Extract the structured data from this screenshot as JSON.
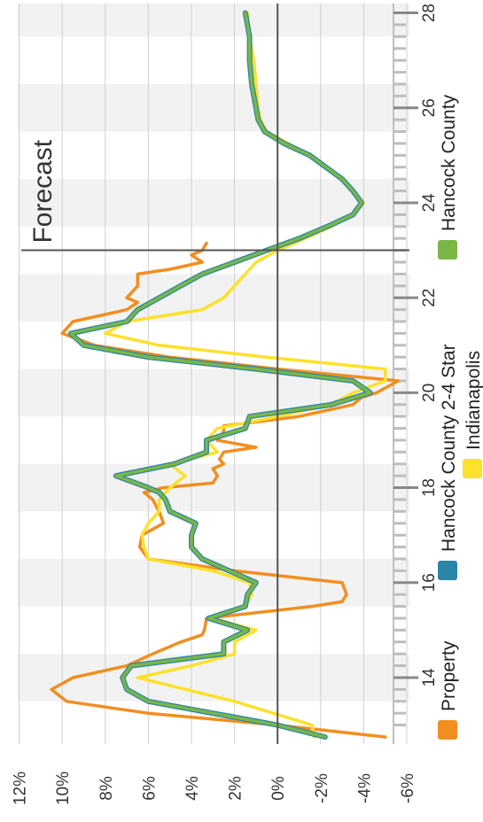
{
  "chart_data": {
    "type": "line",
    "orientation": "rotated-90-counterclockwise",
    "xlim": [
      12.6,
      28.2
    ],
    "ylim": [
      -6,
      12
    ],
    "x_ticks": [
      14,
      16,
      18,
      20,
      22,
      24,
      26,
      28
    ],
    "y_ticks": [
      12,
      10,
      8,
      6,
      4,
      2,
      0,
      -2,
      -4,
      -6
    ],
    "y_tick_labels": [
      "12%",
      "10%",
      "8%",
      "6%",
      "4%",
      "2%",
      "0%",
      "-2%",
      "-4%",
      "-6%"
    ],
    "grid": true,
    "shaded_bands": [
      [
        13.5,
        14.5
      ],
      [
        15.5,
        16.5
      ],
      [
        17.5,
        18.5
      ],
      [
        19.5,
        20.5
      ],
      [
        21.5,
        22.5
      ],
      [
        23.5,
        24.5
      ],
      [
        25.5,
        26.5
      ],
      [
        27.5,
        28.2
      ]
    ],
    "forecast_x": 23.0,
    "annotation": "Forecast",
    "legend_position": "bottom",
    "colors": {
      "Property": "#f28e1f",
      "Hancock County 2-4 Star": "#2a86a8",
      "Indianapolis": "#fde12b",
      "Hancock County": "#7ab648"
    },
    "series": [
      {
        "name": "Property",
        "color": "#f28e1f",
        "x": [
          12.75,
          13.0,
          13.25,
          13.5,
          13.75,
          14.0,
          14.25,
          14.5,
          14.75,
          14.9,
          15.0,
          15.25,
          15.5,
          15.6,
          15.75,
          16.0,
          16.25,
          16.5,
          16.75,
          17.0,
          17.25,
          17.5,
          17.75,
          17.9,
          18.0,
          18.1,
          18.25,
          18.4,
          18.5,
          18.6,
          18.75,
          18.85,
          19.0,
          19.1,
          19.2,
          19.3,
          19.5,
          19.75,
          19.9,
          20.0,
          20.25,
          20.5,
          20.75,
          21.0,
          21.25,
          21.5,
          21.75,
          21.9,
          22.0,
          22.25,
          22.5,
          22.6,
          22.75,
          22.9,
          23.0,
          23.15
        ],
        "y": [
          -5.0,
          0.0,
          6.0,
          9.8,
          10.5,
          9.5,
          7.0,
          5.8,
          4.5,
          3.5,
          3.4,
          3.3,
          -1.6,
          -3.0,
          -3.2,
          -3.0,
          2.0,
          6.0,
          6.4,
          6.3,
          5.3,
          5.5,
          5.8,
          6.2,
          5.3,
          3.0,
          2.8,
          3.0,
          2.5,
          2.7,
          2.5,
          1.0,
          2.8,
          2.6,
          2.5,
          2.5,
          -1.0,
          -3.5,
          -3.9,
          -4.6,
          -5.6,
          0.0,
          5.0,
          8.5,
          10.0,
          9.5,
          7.0,
          6.5,
          7.0,
          6.5,
          6.5,
          5.0,
          3.5,
          4.0,
          3.5,
          3.3
        ]
      },
      {
        "name": "Hancock County 2-4 Star",
        "color": "#2a86a8",
        "x": [
          12.75,
          13.0,
          13.5,
          13.75,
          14.0,
          14.25,
          14.5,
          14.75,
          15.0,
          15.25,
          15.5,
          15.75,
          16.0,
          16.5,
          16.75,
          17.0,
          17.25,
          17.5,
          17.75,
          17.9,
          18.0,
          18.25,
          18.5,
          18.75,
          19.0,
          19.25,
          19.5,
          19.75,
          20.0,
          20.25,
          20.5,
          20.75,
          21.0,
          21.25,
          21.5,
          21.75,
          22.0,
          22.25,
          22.5,
          22.75,
          23.0,
          23.25,
          23.5,
          23.75,
          24.0,
          24.25,
          24.5,
          25.0,
          25.25,
          25.5,
          25.75,
          26.0,
          26.5,
          27.0,
          27.5,
          28.0
        ],
        "y": [
          -2.2,
          0.0,
          6.0,
          7.0,
          7.2,
          6.8,
          2.5,
          2.5,
          1.4,
          3.2,
          1.5,
          1.4,
          1.0,
          3.5,
          4.0,
          4.0,
          3.8,
          5.0,
          5.2,
          5.5,
          6.0,
          7.5,
          4.8,
          3.3,
          3.3,
          1.5,
          1.3,
          -2.5,
          -4.3,
          -3.5,
          1.0,
          6.0,
          9.0,
          9.6,
          7.0,
          6.5,
          5.5,
          4.5,
          3.5,
          2.0,
          0.5,
          -1.0,
          -2.3,
          -3.5,
          -3.9,
          -3.5,
          -3.0,
          -1.5,
          -0.3,
          0.6,
          0.9,
          1.0,
          1.2,
          1.3,
          1.3,
          1.5
        ]
      },
      {
        "name": "Indianapolis",
        "color": "#fde12b",
        "x": [
          12.75,
          13.0,
          13.5,
          14.0,
          14.25,
          14.5,
          14.75,
          15.0,
          15.25,
          15.5,
          15.75,
          16.0,
          16.25,
          16.5,
          16.75,
          17.0,
          17.25,
          17.5,
          17.75,
          18.0,
          18.25,
          18.5,
          18.75,
          19.0,
          19.25,
          19.5,
          19.75,
          20.0,
          20.25,
          20.5,
          20.75,
          21.0,
          21.25,
          21.5,
          21.75,
          22.0,
          22.25,
          22.5,
          22.75,
          23.0,
          23.25,
          23.5,
          23.75,
          24.0,
          24.25,
          24.5,
          25.0,
          25.25,
          25.5,
          25.75,
          26.0,
          26.5,
          27.0,
          27.5,
          28.0
        ],
        "y": [
          -1.7,
          -1.6,
          2.0,
          6.5,
          4.0,
          2.0,
          2.0,
          1.0,
          3.0,
          1.5,
          1.2,
          1.3,
          3.0,
          6.0,
          6.2,
          6.3,
          6.0,
          5.5,
          5.5,
          5.0,
          4.3,
          5.0,
          2.8,
          3.3,
          2.8,
          0.0,
          -2.5,
          -3.5,
          -5.0,
          -5.0,
          0.5,
          5.5,
          8.0,
          7.0,
          3.5,
          2.5,
          2.0,
          1.5,
          1.0,
          0.0,
          -1.3,
          -2.5,
          -3.5,
          -4.0,
          -3.5,
          -3.0,
          -1.5,
          -0.5,
          0.5,
          0.8,
          0.9,
          1.0,
          1.1,
          1.3,
          1.4
        ]
      },
      {
        "name": "Hancock County",
        "color": "#7ab648",
        "x": [
          12.75,
          13.0,
          13.5,
          13.75,
          14.0,
          14.25,
          14.5,
          14.75,
          15.0,
          15.25,
          15.5,
          15.75,
          16.0,
          16.5,
          16.75,
          17.0,
          17.25,
          17.5,
          17.75,
          17.9,
          18.0,
          18.25,
          18.5,
          18.75,
          19.0,
          19.25,
          19.5,
          19.75,
          20.0,
          20.25,
          20.5,
          20.75,
          21.0,
          21.25,
          21.5,
          21.75,
          22.0,
          22.25,
          22.5,
          22.75,
          23.0,
          23.25,
          23.5,
          23.75,
          24.0,
          24.25,
          24.5,
          25.0,
          25.25,
          25.5,
          25.75,
          26.0,
          26.5,
          27.0,
          27.5,
          28.0
        ],
        "y": [
          -2.2,
          0.0,
          6.0,
          7.0,
          7.2,
          6.8,
          2.5,
          2.5,
          1.4,
          3.2,
          1.5,
          1.4,
          1.0,
          3.5,
          4.0,
          4.0,
          3.8,
          5.0,
          5.2,
          5.5,
          6.0,
          7.5,
          4.8,
          3.3,
          3.3,
          1.5,
          1.3,
          -2.5,
          -4.3,
          -3.5,
          1.0,
          6.0,
          9.0,
          9.6,
          7.0,
          6.5,
          5.5,
          4.5,
          3.5,
          2.0,
          0.5,
          -1.0,
          -2.3,
          -3.5,
          -3.9,
          -3.5,
          -3.0,
          -1.5,
          -0.3,
          0.6,
          0.9,
          1.0,
          1.2,
          1.3,
          1.3,
          1.5
        ]
      }
    ],
    "legend": [
      {
        "label": "Property",
        "color": "#f28e1f"
      },
      {
        "label": "Hancock County 2-4 Star",
        "color": "#2a86a8"
      },
      {
        "label": "Indianapolis",
        "color": "#fde12b"
      },
      {
        "label": "Hancock County",
        "color": "#7ab648"
      }
    ]
  }
}
